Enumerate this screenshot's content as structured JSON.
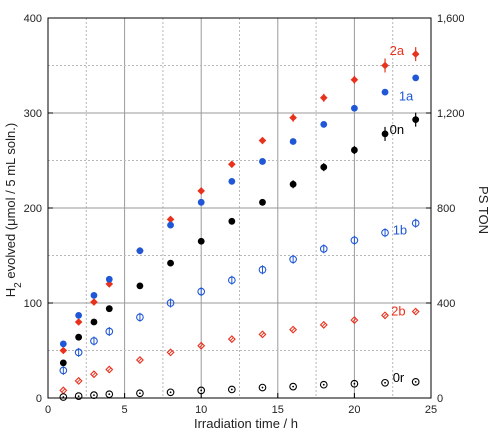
{
  "chart_data": {
    "type": "scatter",
    "xlabel": "Irradiation time / h",
    "ylabel": "H2 evolved (μmol / 5 mL soln.)",
    "ylabel_parts": {
      "prefix": "H",
      "subscript": "2",
      "suffix": " evolved (μmol / 5 mL soln.)"
    },
    "y2label": "PS TON",
    "xlim": [
      0,
      25
    ],
    "ylim": [
      0,
      400
    ],
    "y2lim": [
      0,
      1600
    ],
    "xticks": [
      "0",
      "5",
      "10",
      "15",
      "20",
      "25"
    ],
    "xtick_values": [
      0,
      5,
      10,
      15,
      20,
      25
    ],
    "yticks": [
      "0",
      "100",
      "200",
      "300",
      "400"
    ],
    "ytick_values": [
      0,
      100,
      200,
      300,
      400
    ],
    "y2ticks": [
      "0",
      "400",
      "800",
      "1,200",
      "1,600"
    ],
    "y2tick_values": [
      0,
      400,
      800,
      1200,
      1600
    ],
    "grid": true,
    "series": [
      {
        "name": "2a",
        "color": "#e8321e",
        "marker": "filled-diamond",
        "error_bars": true,
        "x": [
          1,
          2,
          3,
          4,
          6,
          8,
          10,
          12,
          14,
          16,
          18,
          20,
          22,
          24
        ],
        "y": [
          50,
          80,
          101,
          120,
          155,
          188,
          218,
          246,
          271,
          295,
          316,
          335,
          350,
          362
        ]
      },
      {
        "name": "1a",
        "color": "#1f57d6",
        "marker": "filled-circle",
        "x": [
          1,
          2,
          3,
          4,
          6,
          8,
          10,
          12,
          14,
          16,
          18,
          20,
          22,
          24
        ],
        "y": [
          57,
          87,
          108,
          125,
          155,
          182,
          206,
          228,
          249,
          270,
          288,
          305,
          322,
          337
        ]
      },
      {
        "name": "0n",
        "color": "#000000",
        "marker": "filled-circle",
        "error_bars": true,
        "x": [
          1,
          2,
          3,
          4,
          6,
          8,
          10,
          12,
          14,
          16,
          18,
          20,
          22,
          24
        ],
        "y": [
          37,
          64,
          80,
          94,
          118,
          142,
          165,
          186,
          206,
          225,
          243,
          261,
          278,
          293
        ]
      },
      {
        "name": "1b",
        "color": "#1f57d6",
        "marker": "open-circle-bar",
        "x": [
          1,
          2,
          3,
          4,
          6,
          8,
          10,
          12,
          14,
          16,
          18,
          20,
          22,
          24
        ],
        "y": [
          29,
          48,
          60,
          70,
          85,
          100,
          112,
          124,
          135,
          146,
          157,
          166,
          174,
          184
        ]
      },
      {
        "name": "2b",
        "color": "#e8321e",
        "marker": "open-diamond",
        "x": [
          1,
          2,
          3,
          4,
          6,
          8,
          10,
          12,
          14,
          16,
          18,
          20,
          22,
          24
        ],
        "y": [
          8,
          18,
          25,
          30,
          40,
          48,
          55,
          62,
          67,
          72,
          77,
          82,
          87,
          91
        ]
      },
      {
        "name": "0r",
        "color": "#000000",
        "marker": "open-circle-dot",
        "x": [
          1,
          2,
          3,
          4,
          6,
          8,
          10,
          12,
          14,
          16,
          18,
          20,
          22,
          24
        ],
        "y": [
          1,
          2,
          3,
          4,
          5,
          6,
          8,
          9,
          11,
          12,
          14,
          15,
          16,
          17
        ]
      }
    ],
    "annotations": [
      {
        "text": "2a",
        "color": "#e8321e",
        "x": 22.3,
        "y": 361
      },
      {
        "text": "1a",
        "color": "#1f57d6",
        "x": 22.9,
        "y": 313
      },
      {
        "text": "0n",
        "color": "#000000",
        "x": 22.3,
        "y": 278
      },
      {
        "text": "1b",
        "color": "#1f57d6",
        "x": 22.5,
        "y": 172
      },
      {
        "text": "2b",
        "color": "#e8321e",
        "x": 22.4,
        "y": 87
      },
      {
        "text": "0r",
        "color": "#000000",
        "x": 22.5,
        "y": 17
      }
    ]
  }
}
